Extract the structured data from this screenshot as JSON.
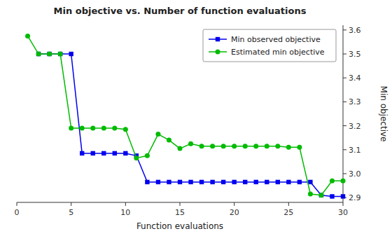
{
  "chart_data": {
    "type": "line",
    "title": "Min objective vs. Number of function evaluations",
    "x_label": "Function evaluations",
    "y_label": "Min objective",
    "xlim": [
      0,
      30
    ],
    "ylim": [
      2.88,
      3.62
    ],
    "xticks": [
      0,
      5,
      10,
      15,
      20,
      25,
      30
    ],
    "yticks": [
      2.9,
      {
        "value": 3.0,
        "label": "3.0"
      },
      3.1,
      3.2,
      3.3,
      3.4,
      3.5,
      3.6
    ],
    "grid": false,
    "legend": "upper right",
    "series": [
      {
        "name": "Min observed objective",
        "color": "#0000ee",
        "marker": "square",
        "x": [
          2,
          3,
          4,
          5,
          6,
          7,
          8,
          9,
          10,
          11,
          12,
          13,
          14,
          15,
          16,
          17,
          18,
          19,
          20,
          21,
          22,
          23,
          24,
          25,
          26,
          27,
          28,
          29,
          30
        ],
        "values": [
          3.5,
          3.5,
          3.5,
          3.5,
          3.085,
          3.085,
          3.085,
          3.085,
          3.085,
          3.075,
          2.965,
          2.965,
          2.965,
          2.965,
          2.965,
          2.965,
          2.965,
          2.965,
          2.965,
          2.965,
          2.965,
          2.965,
          2.965,
          2.965,
          2.965,
          2.965,
          2.91,
          2.905,
          2.905
        ]
      },
      {
        "name": "Estimated min objective",
        "color": "#00bb00",
        "marker": "circle",
        "x": [
          1,
          2,
          3,
          4,
          5,
          6,
          7,
          8,
          9,
          10,
          11,
          12,
          13,
          14,
          15,
          16,
          17,
          18,
          19,
          20,
          21,
          22,
          23,
          24,
          25,
          26,
          27,
          28,
          29,
          30
        ],
        "values": [
          3.575,
          3.5,
          3.5,
          3.5,
          3.19,
          3.19,
          3.19,
          3.19,
          3.19,
          3.185,
          3.065,
          3.075,
          3.165,
          3.14,
          3.105,
          3.125,
          3.115,
          3.115,
          3.115,
          3.115,
          3.115,
          3.115,
          3.115,
          3.115,
          3.11,
          3.11,
          2.915,
          2.91,
          2.97,
          2.97
        ]
      }
    ]
  }
}
